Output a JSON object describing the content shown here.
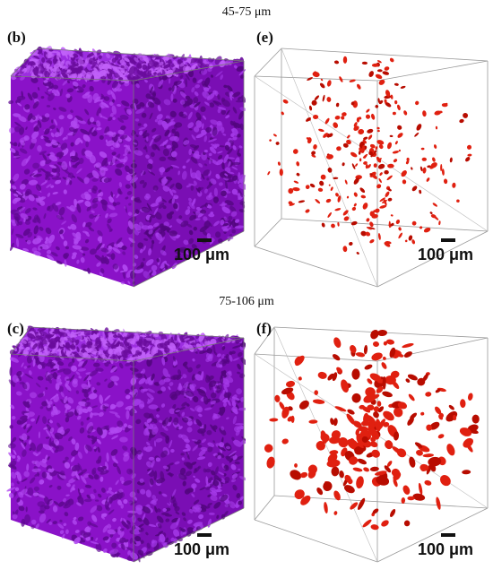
{
  "figure": {
    "top_title": "45-75 μm",
    "bottom_title": "75-106 μm",
    "panels": [
      {
        "label": "(b)",
        "scale_text": "100 μm",
        "style": "dense",
        "color": "#a020f0"
      },
      {
        "label": "(e)",
        "scale_text": "100 μm",
        "style": "sparse",
        "color": "#e02010"
      },
      {
        "label": "(c)",
        "scale_text": "100 μm",
        "style": "dense",
        "color": "#a020f0"
      },
      {
        "label": "(f)",
        "scale_text": "100 μm",
        "style": "sparse",
        "color": "#e02010"
      }
    ]
  }
}
